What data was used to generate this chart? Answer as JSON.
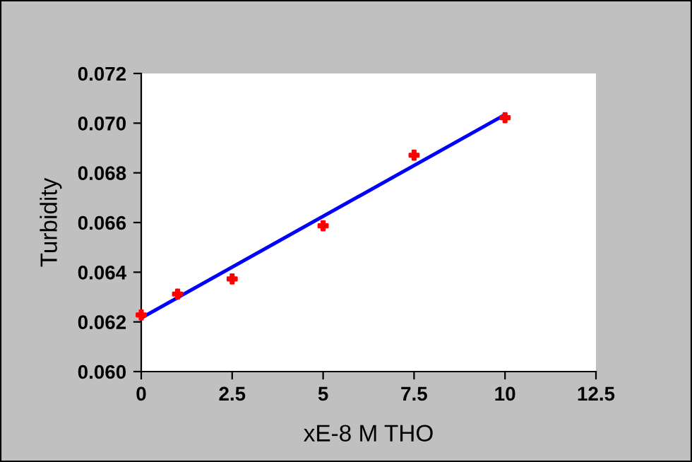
{
  "chart_data": {
    "type": "scatter",
    "xlabel": "xE-8 M THO",
    "ylabel": "Turbidity",
    "series": [
      {
        "color": "#ff0000",
        "marker": "cross",
        "x": [
          0,
          1,
          2.5,
          5,
          7.5,
          10
        ],
        "values": [
          0.06228,
          0.06312,
          0.06373,
          0.06587,
          0.06871,
          0.07022
        ]
      },
      {
        "type": "line",
        "color": "#0000ff",
        "marker": "none",
        "line_style": "solid",
        "x": [
          0,
          10
        ],
        "values": [
          0.06216,
          0.07034
        ]
      }
    ],
    "xlim": [
      0,
      12.5
    ],
    "xticks": [
      0,
      2.5,
      5,
      7.5,
      10,
      12.5
    ],
    "ylim": [
      0.06,
      0.072
    ],
    "yticks": [
      {
        "value": 0.06,
        "label": "0.060"
      },
      {
        "value": 0.062,
        "label": "0.062"
      },
      {
        "value": 0.064,
        "label": "0.064"
      },
      {
        "value": 0.066,
        "label": "0.066"
      },
      {
        "value": 0.068,
        "label": "0.068"
      },
      {
        "value": 0.07,
        "label": "0.070"
      },
      {
        "value": 0.072,
        "label": "0.072"
      }
    ],
    "grid": false,
    "legend": false
  }
}
